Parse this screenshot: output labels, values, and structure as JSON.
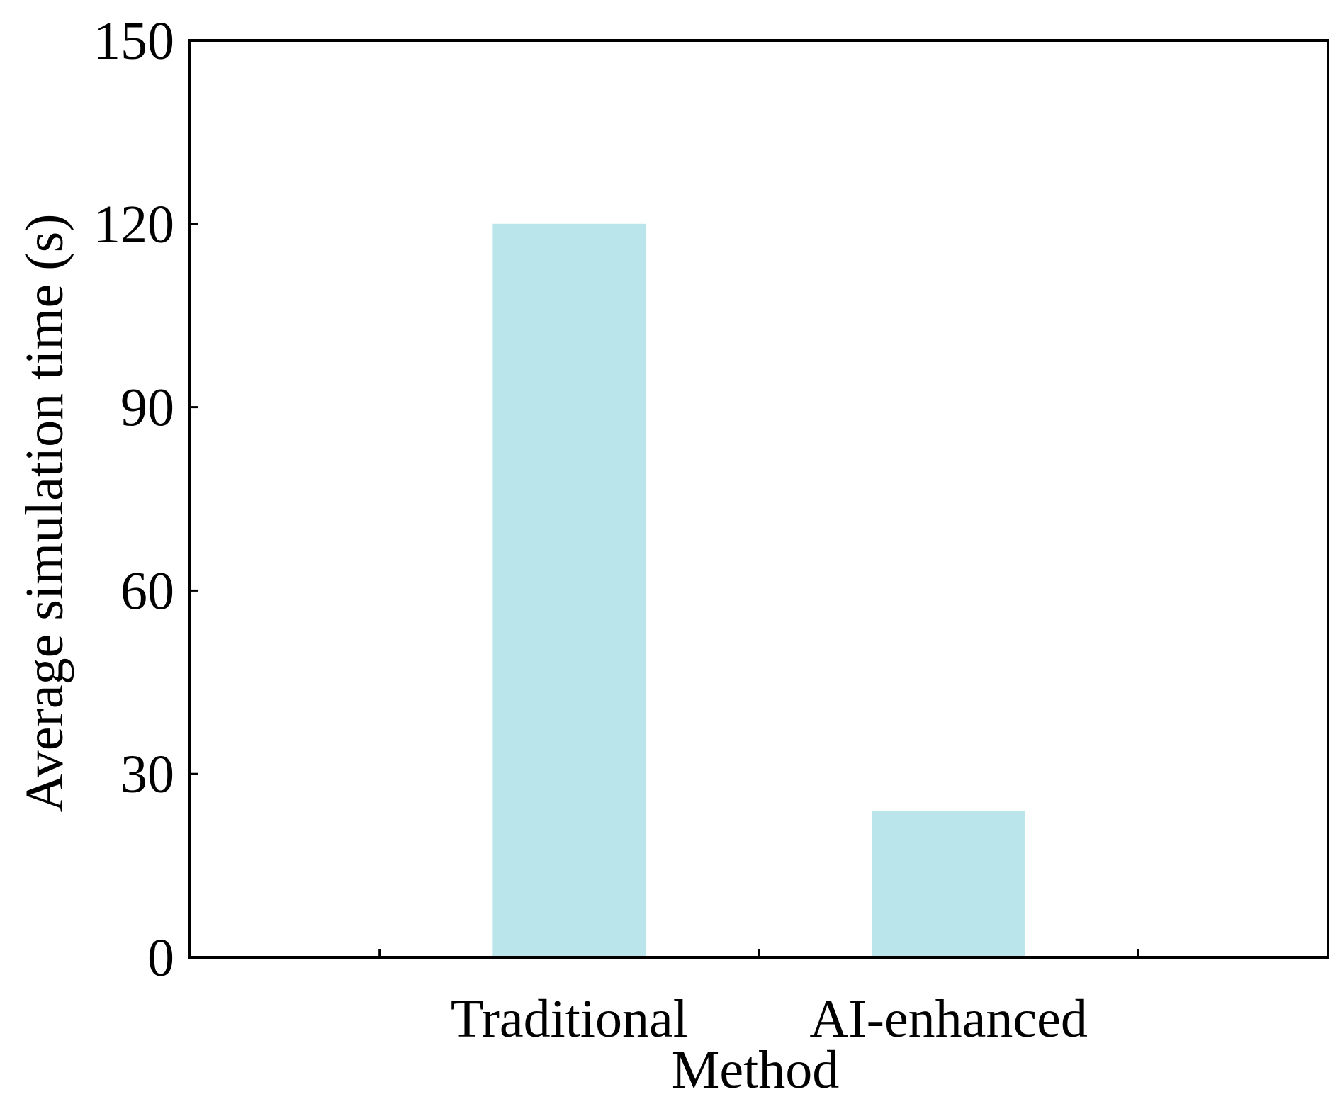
{
  "chart_data": {
    "type": "bar",
    "categories": [
      "Traditional",
      "AI-enhanced"
    ],
    "values": [
      120,
      24
    ],
    "title": "",
    "xlabel": "Method",
    "ylabel": "Average simulation time (s)",
    "ylim": [
      0,
      150
    ],
    "yticks": [
      0,
      30,
      60,
      90,
      120,
      150
    ],
    "grid": false,
    "legend": "none",
    "bar_color": "#bae5eb",
    "axis_color": "#000000"
  }
}
